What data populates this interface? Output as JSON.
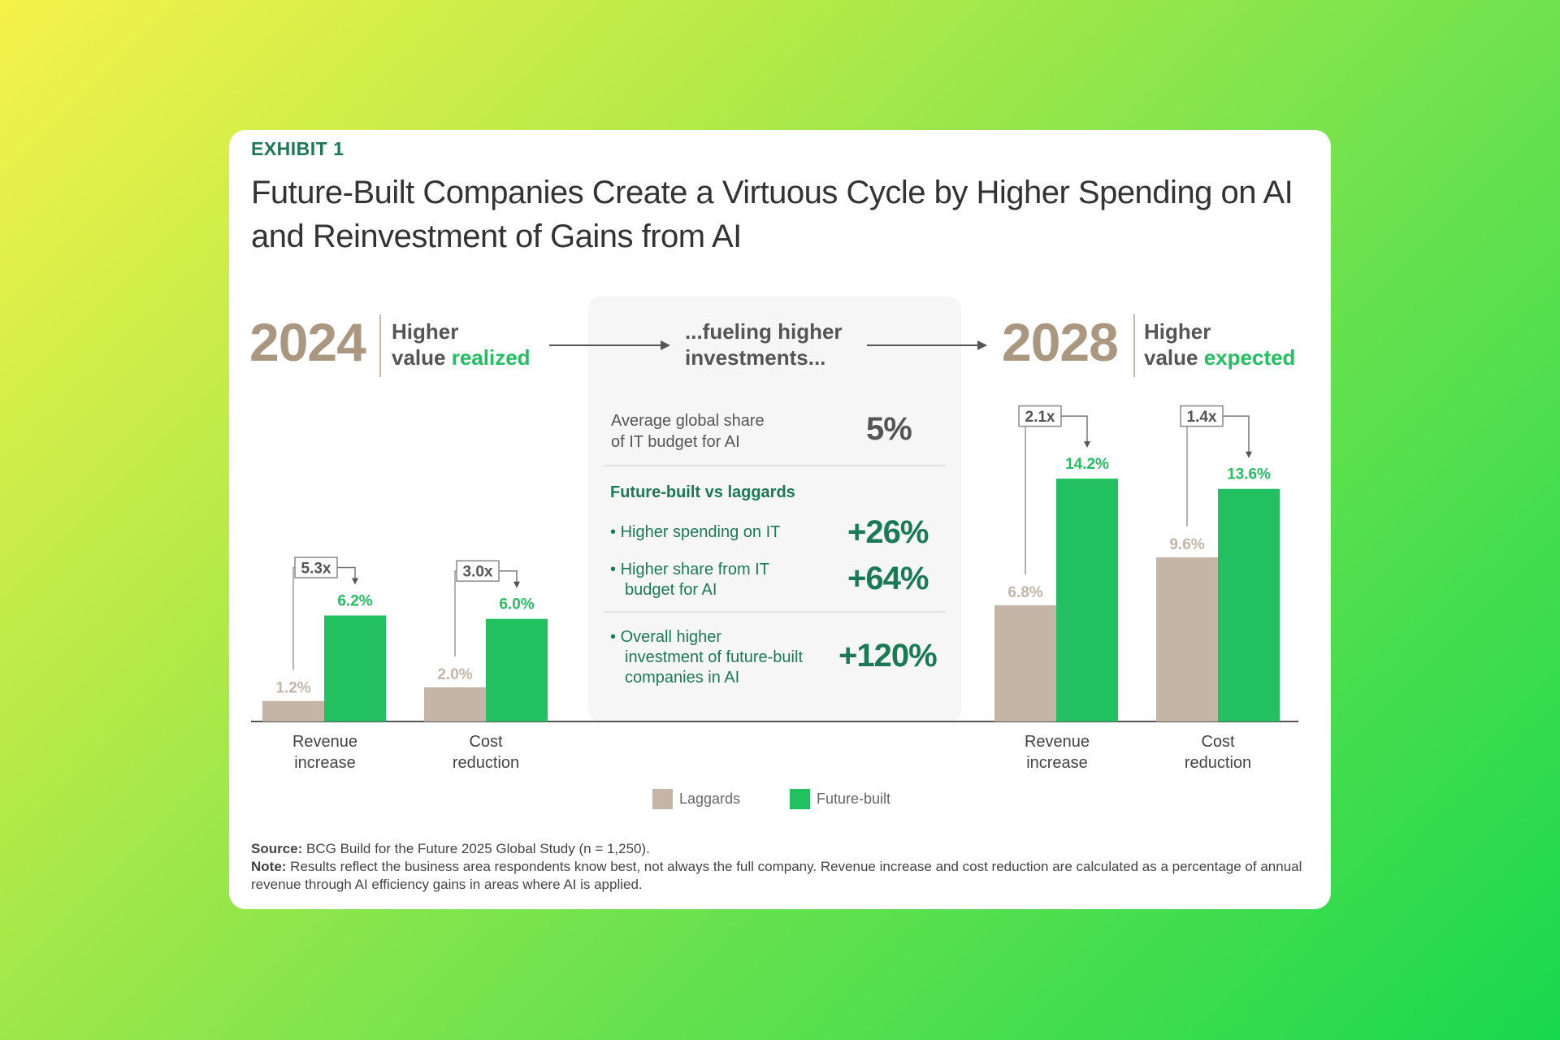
{
  "exhibit_label": "EXHIBIT 1",
  "title": "Future-Built Companies Create a Virtuous Cycle by Higher Spending on AI and Reinvestment of Gains from AI",
  "left_header": {
    "year": "2024",
    "line1": "Higher",
    "line2_plain": "value ",
    "line2_accent": "realized"
  },
  "middle_header": {
    "line1": "...fueling higher",
    "line2": "investments..."
  },
  "right_header": {
    "year": "2028",
    "line1": "Higher",
    "line2_plain": "value ",
    "line2_accent": "expected"
  },
  "panel": {
    "avg_label_1": "Average global share",
    "avg_label_2": "of IT budget for AI",
    "avg_value": "5%",
    "section_title": "Future-built vs laggards",
    "items": [
      {
        "label_1": "Higher spending on IT",
        "label_2": "",
        "label_3": "",
        "value": "+26%"
      },
      {
        "label_1": "Higher share from IT",
        "label_2": "budget for AI",
        "label_3": "",
        "value": "+64%"
      },
      {
        "label_1": "Overall higher",
        "label_2": "investment of future-built",
        "label_3": "companies in AI",
        "value": "+120%"
      }
    ]
  },
  "colors": {
    "laggards": "#c4b5a6",
    "future_built": "#22c060",
    "accent_dark": "#1a7a55",
    "year": "#ab9680"
  },
  "chart_data": {
    "type": "bar",
    "series_names": [
      "Laggards",
      "Future-built"
    ],
    "legend_position": "bottom",
    "grid": false,
    "ylim": [
      0,
      15
    ],
    "groups": [
      {
        "year": "2024",
        "category_1": "Revenue",
        "category_2": "increase",
        "laggards": 1.2,
        "future_built": 6.2,
        "laggards_label": "1.2%",
        "future_built_label": "6.2%",
        "multiplier": "5.3x"
      },
      {
        "year": "2024",
        "category_1": "Cost",
        "category_2": "reduction",
        "laggards": 2.0,
        "future_built": 6.0,
        "laggards_label": "2.0%",
        "future_built_label": "6.0%",
        "multiplier": "3.0x"
      },
      {
        "year": "2028",
        "category_1": "Revenue",
        "category_2": "increase",
        "laggards": 6.8,
        "future_built": 14.2,
        "laggards_label": "6.8%",
        "future_built_label": "14.2%",
        "multiplier": "2.1x"
      },
      {
        "year": "2028",
        "category_1": "Cost",
        "category_2": "reduction",
        "laggards": 9.6,
        "future_built": 13.6,
        "laggards_label": "9.6%",
        "future_built_label": "13.6%",
        "multiplier": "1.4x"
      }
    ]
  },
  "legend": {
    "laggards": "Laggards",
    "future_built": "Future-built"
  },
  "source": {
    "source_label": "Source:",
    "source_text": " BCG Build for the Future 2025 Global Study (n = 1,250).",
    "note_label": "Note:",
    "note_text": " Results reflect the business area respondents know best, not always the full company. Revenue increase and cost reduction are calculated as a percentage of annual revenue through AI efficiency gains in areas where AI is applied."
  }
}
